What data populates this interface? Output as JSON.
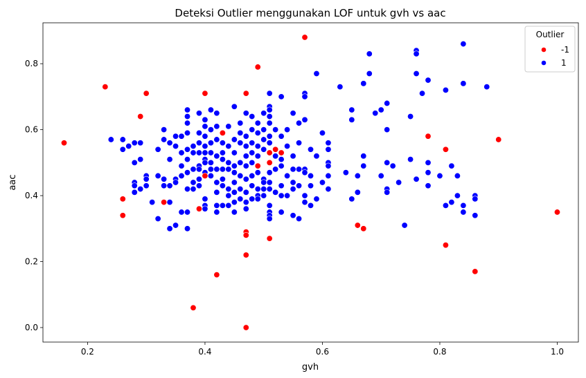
{
  "chart_data": {
    "type": "scatter",
    "title": "Deteksi Outlier menggunakan LOF untuk gvh vs aac",
    "xlabel": "gvh",
    "ylabel": "aac",
    "xlim": [
      0.124,
      1.036
    ],
    "ylim": [
      -0.044,
      0.924
    ],
    "xticks": [
      0.2,
      0.4,
      0.6,
      0.8,
      1.0
    ],
    "xtick_labels": [
      "0.2",
      "0.4",
      "0.6",
      "0.8",
      "1.0"
    ],
    "yticks": [
      0.0,
      0.2,
      0.4,
      0.6,
      0.8
    ],
    "ytick_labels": [
      "0.0",
      "0.2",
      "0.4",
      "0.6",
      "0.8"
    ],
    "grid": false,
    "legend": {
      "title": "Outlier",
      "placement": "top-right"
    },
    "series": [
      {
        "name": "-1",
        "color": "#ff0000",
        "points": [
          [
            0.16,
            0.56
          ],
          [
            0.23,
            0.73
          ],
          [
            0.26,
            0.39
          ],
          [
            0.26,
            0.34
          ],
          [
            0.29,
            0.64
          ],
          [
            0.3,
            0.71
          ],
          [
            0.33,
            0.38
          ],
          [
            0.38,
            0.06
          ],
          [
            0.39,
            0.36
          ],
          [
            0.4,
            0.71
          ],
          [
            0.4,
            0.46
          ],
          [
            0.42,
            0.16
          ],
          [
            0.43,
            0.59
          ],
          [
            0.47,
            0.71
          ],
          [
            0.47,
            0.29
          ],
          [
            0.47,
            0.28
          ],
          [
            0.47,
            0.22
          ],
          [
            0.47,
            0.0
          ],
          [
            0.49,
            0.79
          ],
          [
            0.49,
            0.49
          ],
          [
            0.51,
            0.53
          ],
          [
            0.51,
            0.5
          ],
          [
            0.51,
            0.27
          ],
          [
            0.52,
            0.54
          ],
          [
            0.53,
            0.53
          ],
          [
            0.57,
            0.88
          ],
          [
            0.66,
            0.31
          ],
          [
            0.67,
            0.3
          ],
          [
            0.78,
            0.58
          ],
          [
            0.81,
            0.54
          ],
          [
            0.81,
            0.25
          ],
          [
            0.86,
            0.17
          ],
          [
            0.9,
            0.57
          ],
          [
            1.0,
            0.35
          ]
        ]
      },
      {
        "name": "1",
        "color": "#0000ff",
        "points": [
          [
            0.24,
            0.57
          ],
          [
            0.26,
            0.57
          ],
          [
            0.26,
            0.54
          ],
          [
            0.27,
            0.55
          ],
          [
            0.28,
            0.56
          ],
          [
            0.28,
            0.5
          ],
          [
            0.28,
            0.44
          ],
          [
            0.28,
            0.43
          ],
          [
            0.28,
            0.41
          ],
          [
            0.29,
            0.56
          ],
          [
            0.29,
            0.51
          ],
          [
            0.29,
            0.42
          ],
          [
            0.3,
            0.46
          ],
          [
            0.3,
            0.45
          ],
          [
            0.3,
            0.43
          ],
          [
            0.31,
            0.38
          ],
          [
            0.32,
            0.54
          ],
          [
            0.32,
            0.46
          ],
          [
            0.32,
            0.33
          ],
          [
            0.33,
            0.6
          ],
          [
            0.33,
            0.57
          ],
          [
            0.33,
            0.45
          ],
          [
            0.33,
            0.43
          ],
          [
            0.34,
            0.56
          ],
          [
            0.34,
            0.51
          ],
          [
            0.34,
            0.43
          ],
          [
            0.34,
            0.38
          ],
          [
            0.34,
            0.3
          ],
          [
            0.35,
            0.58
          ],
          [
            0.35,
            0.55
          ],
          [
            0.35,
            0.45
          ],
          [
            0.35,
            0.44
          ],
          [
            0.35,
            0.31
          ],
          [
            0.36,
            0.58
          ],
          [
            0.36,
            0.53
          ],
          [
            0.36,
            0.49
          ],
          [
            0.36,
            0.46
          ],
          [
            0.36,
            0.35
          ],
          [
            0.37,
            0.66
          ],
          [
            0.37,
            0.64
          ],
          [
            0.37,
            0.62
          ],
          [
            0.37,
            0.59
          ],
          [
            0.37,
            0.54
          ],
          [
            0.37,
            0.51
          ],
          [
            0.37,
            0.47
          ],
          [
            0.37,
            0.42
          ],
          [
            0.37,
            0.35
          ],
          [
            0.37,
            0.3
          ],
          [
            0.38,
            0.55
          ],
          [
            0.38,
            0.53
          ],
          [
            0.38,
            0.48
          ],
          [
            0.38,
            0.44
          ],
          [
            0.38,
            0.42
          ],
          [
            0.39,
            0.65
          ],
          [
            0.39,
            0.59
          ],
          [
            0.39,
            0.56
          ],
          [
            0.39,
            0.53
          ],
          [
            0.39,
            0.49
          ],
          [
            0.39,
            0.48
          ],
          [
            0.39,
            0.45
          ],
          [
            0.39,
            0.43
          ],
          [
            0.4,
            0.63
          ],
          [
            0.4,
            0.61
          ],
          [
            0.4,
            0.58
          ],
          [
            0.4,
            0.55
          ],
          [
            0.4,
            0.53
          ],
          [
            0.4,
            0.51
          ],
          [
            0.4,
            0.5
          ],
          [
            0.4,
            0.47
          ],
          [
            0.4,
            0.39
          ],
          [
            0.4,
            0.37
          ],
          [
            0.4,
            0.36
          ],
          [
            0.41,
            0.66
          ],
          [
            0.41,
            0.6
          ],
          [
            0.41,
            0.56
          ],
          [
            0.41,
            0.53
          ],
          [
            0.41,
            0.5
          ],
          [
            0.41,
            0.48
          ],
          [
            0.41,
            0.46
          ],
          [
            0.42,
            0.65
          ],
          [
            0.42,
            0.61
          ],
          [
            0.42,
            0.57
          ],
          [
            0.42,
            0.52
          ],
          [
            0.42,
            0.48
          ],
          [
            0.42,
            0.44
          ],
          [
            0.42,
            0.41
          ],
          [
            0.42,
            0.37
          ],
          [
            0.42,
            0.35
          ],
          [
            0.43,
            0.56
          ],
          [
            0.43,
            0.53
          ],
          [
            0.43,
            0.51
          ],
          [
            0.43,
            0.48
          ],
          [
            0.43,
            0.45
          ],
          [
            0.43,
            0.43
          ],
          [
            0.43,
            0.37
          ],
          [
            0.44,
            0.61
          ],
          [
            0.44,
            0.55
          ],
          [
            0.44,
            0.5
          ],
          [
            0.44,
            0.48
          ],
          [
            0.44,
            0.42
          ],
          [
            0.44,
            0.4
          ],
          [
            0.44,
            0.37
          ],
          [
            0.45,
            0.67
          ],
          [
            0.45,
            0.57
          ],
          [
            0.45,
            0.53
          ],
          [
            0.45,
            0.49
          ],
          [
            0.45,
            0.47
          ],
          [
            0.45,
            0.44
          ],
          [
            0.45,
            0.41
          ],
          [
            0.45,
            0.38
          ],
          [
            0.45,
            0.35
          ],
          [
            0.46,
            0.62
          ],
          [
            0.46,
            0.59
          ],
          [
            0.46,
            0.56
          ],
          [
            0.46,
            0.5
          ],
          [
            0.46,
            0.46
          ],
          [
            0.46,
            0.42
          ],
          [
            0.46,
            0.39
          ],
          [
            0.47,
            0.65
          ],
          [
            0.47,
            0.58
          ],
          [
            0.47,
            0.55
          ],
          [
            0.47,
            0.52
          ],
          [
            0.47,
            0.49
          ],
          [
            0.47,
            0.45
          ],
          [
            0.47,
            0.41
          ],
          [
            0.47,
            0.38
          ],
          [
            0.47,
            0.36
          ],
          [
            0.48,
            0.64
          ],
          [
            0.48,
            0.6
          ],
          [
            0.48,
            0.56
          ],
          [
            0.48,
            0.53
          ],
          [
            0.48,
            0.5
          ],
          [
            0.48,
            0.46
          ],
          [
            0.48,
            0.43
          ],
          [
            0.48,
            0.39
          ],
          [
            0.49,
            0.62
          ],
          [
            0.49,
            0.59
          ],
          [
            0.49,
            0.55
          ],
          [
            0.49,
            0.52
          ],
          [
            0.49,
            0.47
          ],
          [
            0.49,
            0.42
          ],
          [
            0.49,
            0.4
          ],
          [
            0.49,
            0.39
          ],
          [
            0.5,
            0.65
          ],
          [
            0.5,
            0.6
          ],
          [
            0.5,
            0.57
          ],
          [
            0.5,
            0.54
          ],
          [
            0.5,
            0.45
          ],
          [
            0.5,
            0.44
          ],
          [
            0.5,
            0.42
          ],
          [
            0.5,
            0.4
          ],
          [
            0.51,
            0.71
          ],
          [
            0.51,
            0.67
          ],
          [
            0.51,
            0.66
          ],
          [
            0.51,
            0.64
          ],
          [
            0.51,
            0.62
          ],
          [
            0.51,
            0.58
          ],
          [
            0.51,
            0.56
          ],
          [
            0.51,
            0.47
          ],
          [
            0.51,
            0.44
          ],
          [
            0.51,
            0.42
          ],
          [
            0.51,
            0.37
          ],
          [
            0.51,
            0.35
          ],
          [
            0.51,
            0.34
          ],
          [
            0.51,
            0.33
          ],
          [
            0.52,
            0.6
          ],
          [
            0.52,
            0.52
          ],
          [
            0.52,
            0.48
          ],
          [
            0.52,
            0.41
          ],
          [
            0.53,
            0.7
          ],
          [
            0.53,
            0.58
          ],
          [
            0.53,
            0.51
          ],
          [
            0.53,
            0.49
          ],
          [
            0.53,
            0.43
          ],
          [
            0.53,
            0.4
          ],
          [
            0.53,
            0.35
          ],
          [
            0.54,
            0.6
          ],
          [
            0.54,
            0.55
          ],
          [
            0.54,
            0.46
          ],
          [
            0.54,
            0.4
          ],
          [
            0.55,
            0.65
          ],
          [
            0.55,
            0.52
          ],
          [
            0.55,
            0.48
          ],
          [
            0.55,
            0.44
          ],
          [
            0.55,
            0.42
          ],
          [
            0.55,
            0.34
          ],
          [
            0.56,
            0.62
          ],
          [
            0.56,
            0.56
          ],
          [
            0.56,
            0.48
          ],
          [
            0.56,
            0.43
          ],
          [
            0.56,
            0.33
          ],
          [
            0.57,
            0.71
          ],
          [
            0.57,
            0.7
          ],
          [
            0.57,
            0.63
          ],
          [
            0.57,
            0.48
          ],
          [
            0.57,
            0.47
          ],
          [
            0.57,
            0.4
          ],
          [
            0.57,
            0.38
          ],
          [
            0.58,
            0.54
          ],
          [
            0.58,
            0.46
          ],
          [
            0.58,
            0.43
          ],
          [
            0.58,
            0.37
          ],
          [
            0.59,
            0.77
          ],
          [
            0.59,
            0.52
          ],
          [
            0.59,
            0.39
          ],
          [
            0.6,
            0.59
          ],
          [
            0.6,
            0.44
          ],
          [
            0.61,
            0.56
          ],
          [
            0.61,
            0.54
          ],
          [
            0.61,
            0.5
          ],
          [
            0.61,
            0.49
          ],
          [
            0.61,
            0.46
          ],
          [
            0.61,
            0.42
          ],
          [
            0.63,
            0.73
          ],
          [
            0.64,
            0.47
          ],
          [
            0.65,
            0.66
          ],
          [
            0.65,
            0.63
          ],
          [
            0.65,
            0.39
          ],
          [
            0.66,
            0.46
          ],
          [
            0.66,
            0.41
          ],
          [
            0.67,
            0.74
          ],
          [
            0.67,
            0.52
          ],
          [
            0.67,
            0.49
          ],
          [
            0.68,
            0.83
          ],
          [
            0.68,
            0.77
          ],
          [
            0.69,
            0.65
          ],
          [
            0.7,
            0.66
          ],
          [
            0.7,
            0.46
          ],
          [
            0.71,
            0.68
          ],
          [
            0.71,
            0.6
          ],
          [
            0.71,
            0.5
          ],
          [
            0.71,
            0.42
          ],
          [
            0.71,
            0.41
          ],
          [
            0.72,
            0.49
          ],
          [
            0.73,
            0.44
          ],
          [
            0.74,
            0.31
          ],
          [
            0.75,
            0.64
          ],
          [
            0.75,
            0.51
          ],
          [
            0.76,
            0.84
          ],
          [
            0.76,
            0.83
          ],
          [
            0.76,
            0.77
          ],
          [
            0.76,
            0.45
          ],
          [
            0.77,
            0.71
          ],
          [
            0.78,
            0.75
          ],
          [
            0.78,
            0.5
          ],
          [
            0.78,
            0.47
          ],
          [
            0.78,
            0.43
          ],
          [
            0.8,
            0.46
          ],
          [
            0.81,
            0.72
          ],
          [
            0.81,
            0.37
          ],
          [
            0.82,
            0.49
          ],
          [
            0.82,
            0.38
          ],
          [
            0.83,
            0.46
          ],
          [
            0.83,
            0.4
          ],
          [
            0.84,
            0.86
          ],
          [
            0.84,
            0.74
          ],
          [
            0.84,
            0.37
          ],
          [
            0.84,
            0.35
          ],
          [
            0.86,
            0.4
          ],
          [
            0.86,
            0.39
          ],
          [
            0.86,
            0.34
          ],
          [
            0.88,
            0.73
          ]
        ]
      }
    ]
  }
}
